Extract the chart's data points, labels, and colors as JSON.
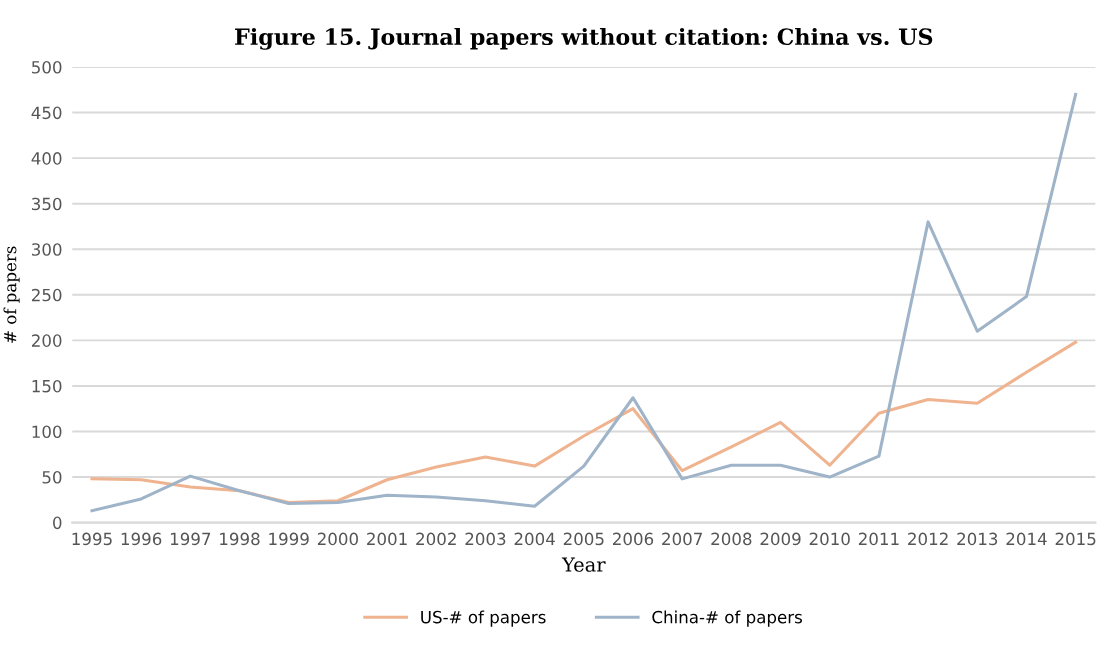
{
  "chart_data": {
    "type": "line",
    "title": "Figure 15. Journal papers without citation: China vs. US",
    "xlabel": "Year",
    "ylabel": "# of papers",
    "categories": [
      "1995",
      "1996",
      "1997",
      "1998",
      "1999",
      "2000",
      "2001",
      "2002",
      "2003",
      "2004",
      "2005",
      "2006",
      "2007",
      "2008",
      "2009",
      "2010",
      "2011",
      "2012",
      "2013",
      "2014",
      "2015"
    ],
    "series": [
      {
        "name": "US-# of papers",
        "color": "#efb48f",
        "values": [
          48,
          47,
          39,
          35,
          22,
          24,
          47,
          61,
          72,
          62,
          95,
          125,
          57,
          83,
          110,
          63,
          120,
          135,
          131,
          165,
          198
        ]
      },
      {
        "name": "China-# of papers",
        "color": "#9fb4c8",
        "values": [
          13,
          26,
          51,
          35,
          21,
          22,
          30,
          28,
          24,
          18,
          62,
          137,
          48,
          63,
          63,
          50,
          73,
          330,
          210,
          248,
          470
        ]
      }
    ],
    "ylim": [
      0,
      500
    ],
    "yticks": [
      0,
      50,
      100,
      150,
      200,
      250,
      300,
      350,
      400,
      450,
      500
    ],
    "grid": "y",
    "legend": "bottom",
    "marker": "none",
    "line_style": "solid"
  }
}
